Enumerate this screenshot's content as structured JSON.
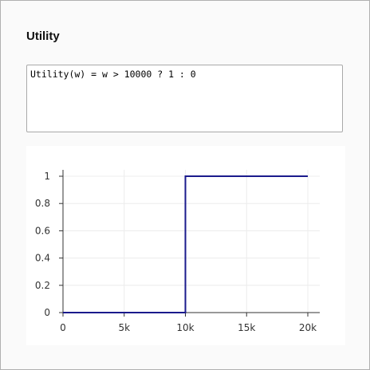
{
  "panel": {
    "title": "Utility"
  },
  "editor": {
    "value": "Utility(w) = w > 10000 ? 1 : 0"
  },
  "colors": {
    "line": "#1a1a8c",
    "grid": "#ececec",
    "axis": "#333333"
  },
  "chart_data": {
    "type": "line",
    "title": "",
    "xlabel": "",
    "ylabel": "",
    "xlim": [
      0,
      20000
    ],
    "ylim": [
      0,
      1
    ],
    "grid": true,
    "x_ticks": [
      0,
      5000,
      10000,
      15000,
      20000
    ],
    "x_tick_labels": [
      "0",
      "5k",
      "10k",
      "15k",
      "20k"
    ],
    "y_ticks": [
      0,
      0.2,
      0.4,
      0.6,
      0.8,
      1
    ],
    "y_tick_labels": [
      "0",
      "0.2",
      "0.4",
      "0.6",
      "0.8",
      "1"
    ],
    "series": [
      {
        "x": [
          0,
          10000,
          10000,
          20000
        ],
        "y": [
          0,
          0,
          1,
          1
        ]
      }
    ]
  }
}
